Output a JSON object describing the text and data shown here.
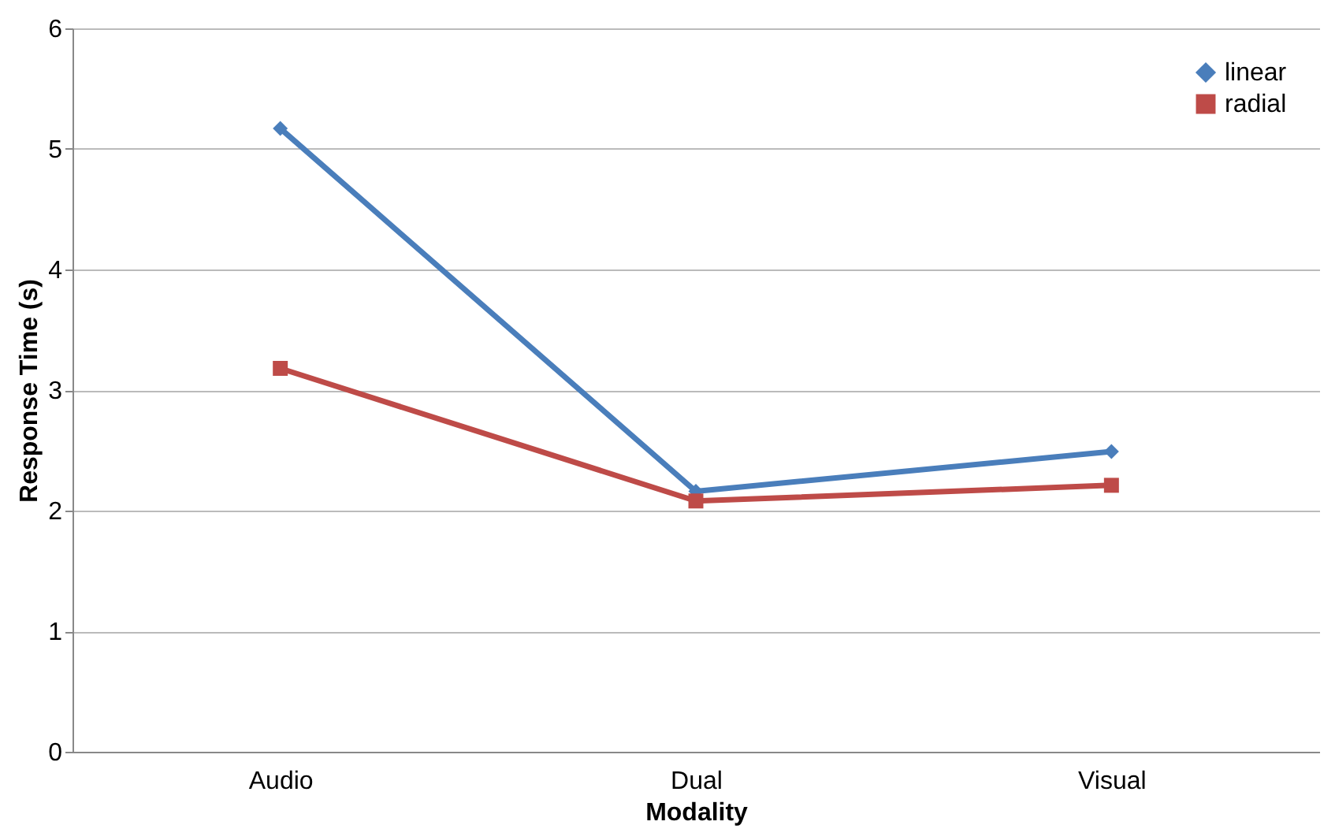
{
  "chart_data": {
    "type": "line",
    "xlabel": "Modality",
    "ylabel": "Response Time (s)",
    "categories": [
      "Audio",
      "Dual",
      "Visual"
    ],
    "series": [
      {
        "name": "linear",
        "color": "#4a7ebb",
        "values": [
          5.17,
          2.16,
          2.49
        ],
        "marker": "diamond"
      },
      {
        "name": "radial",
        "color": "#be4b48",
        "values": [
          3.18,
          2.08,
          2.21
        ],
        "marker": "square"
      }
    ],
    "ylim": [
      0,
      6
    ],
    "yticks": [
      0,
      1,
      2,
      3,
      4,
      5,
      6
    ],
    "grid": "y",
    "legend": "top right",
    "line_style": "solid"
  }
}
